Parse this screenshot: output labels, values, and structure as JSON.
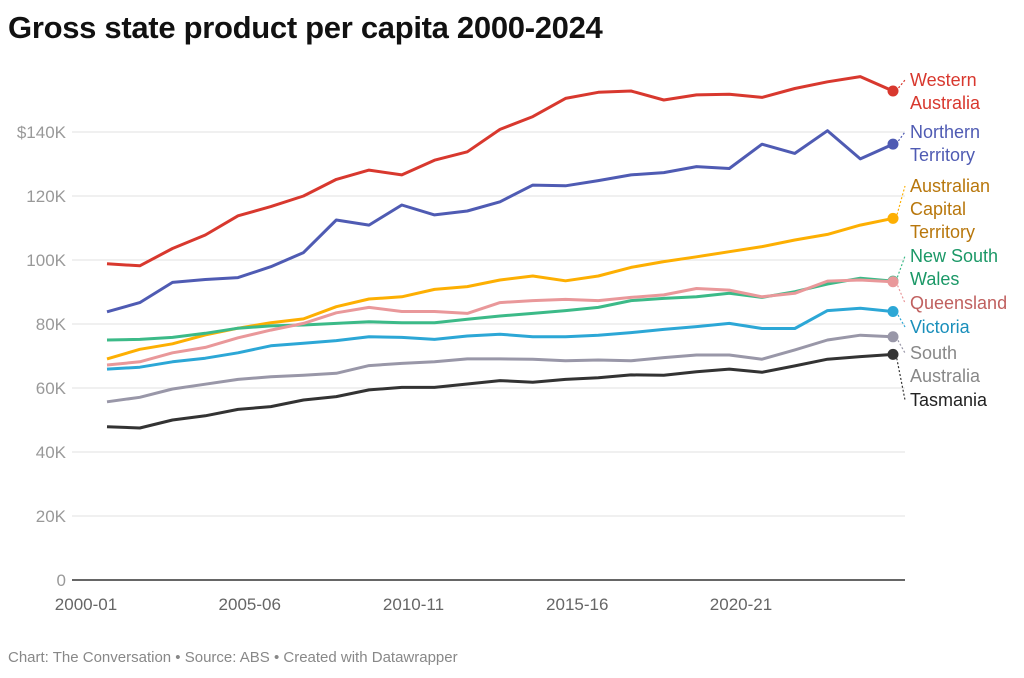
{
  "chart_data": {
    "type": "line",
    "title": "Gross state product per capita 2000-2024",
    "footer": "Chart: The Conversation • Source: ABS • Created with Datawrapper",
    "xlabel": "",
    "ylabel": "",
    "ylim": [
      0,
      160000
    ],
    "grid": true,
    "legend": "direct-labels-right",
    "x": [
      "2000-01",
      "2001-02",
      "2002-03",
      "2003-04",
      "2004-05",
      "2005-06",
      "2006-07",
      "2007-08",
      "2008-09",
      "2009-10",
      "2010-11",
      "2011-12",
      "2012-13",
      "2013-14",
      "2014-15",
      "2015-16",
      "2016-17",
      "2017-18",
      "2018-19",
      "2019-20",
      "2020-21",
      "2021-22",
      "2022-23",
      "2023-24",
      "2024-25"
    ],
    "x_tick_labels": [
      "2000-01",
      "2005-06",
      "2010-11",
      "2015-16",
      "2020-21"
    ],
    "y_ticks": [
      0,
      20000,
      40000,
      60000,
      80000,
      100000,
      120000,
      140000
    ],
    "y_tick_labels": [
      "0",
      "20K",
      "40K",
      "60K",
      "80K",
      "100K",
      "120K",
      "$140K"
    ],
    "series": [
      {
        "name": "Western Australia",
        "label_lines": [
          "Western",
          "Australia"
        ],
        "color": "#d8382e",
        "label_color": "#d8382e",
        "values": [
          98800,
          98200,
          103600,
          107800,
          113800,
          116700,
          120000,
          125200,
          128100,
          126600,
          131200,
          133800,
          140800,
          144800,
          150500,
          152400,
          152800,
          150000,
          151600,
          151800,
          150800,
          153600,
          155700,
          157300,
          152800
        ]
      },
      {
        "name": "Northern Territory",
        "label_lines": [
          "Northern",
          "Territory"
        ],
        "color": "#4f5bb3",
        "label_color": "#4f5bb3",
        "values": [
          83800,
          86700,
          93000,
          93900,
          94500,
          97900,
          102300,
          112500,
          110900,
          117200,
          114100,
          115300,
          118200,
          123400,
          123200,
          124800,
          126600,
          127300,
          129200,
          128600,
          136200,
          133300,
          140400,
          131600,
          136200
        ]
      },
      {
        "name": "Australian Capital Territory",
        "label_lines": [
          "Australian",
          "Capital",
          "Territory"
        ],
        "color": "#fdaf02",
        "label_color": "#b8770c",
        "values": [
          69100,
          72100,
          73800,
          76600,
          78700,
          80400,
          81600,
          85400,
          87800,
          88500,
          90800,
          91700,
          93750,
          95000,
          93500,
          95000,
          97700,
          99500,
          101000,
          102600,
          104200,
          106250,
          108000,
          110900,
          113000
        ]
      },
      {
        "name": "New South Wales",
        "label_lines": [
          "New South",
          "Wales"
        ],
        "color": "#3cba88",
        "label_color": "#1b9867",
        "values": [
          75000,
          75200,
          75800,
          77100,
          78700,
          79400,
          79700,
          80200,
          80700,
          80400,
          80400,
          81500,
          82500,
          83300,
          84200,
          85200,
          87300,
          88000,
          88500,
          89600,
          88300,
          90100,
          92500,
          94300,
          93400
        ]
      },
      {
        "name": "Queensland",
        "label_lines": [
          "Queensland"
        ],
        "color": "#e9989a",
        "label_color": "#c0605f",
        "values": [
          67200,
          68200,
          71000,
          72700,
          75700,
          78100,
          80200,
          83500,
          85200,
          83900,
          83900,
          83300,
          86700,
          87300,
          87700,
          87300,
          88300,
          89100,
          91100,
          90600,
          88500,
          89600,
          93400,
          93750,
          93200
        ]
      },
      {
        "name": "Victoria",
        "label_lines": [
          "Victoria"
        ],
        "color": "#2ca7d6",
        "label_color": "#1a8fbb",
        "values": [
          65900,
          66500,
          68200,
          69300,
          71000,
          73200,
          74000,
          74800,
          76000,
          75800,
          75200,
          76250,
          76800,
          76000,
          76000,
          76500,
          77300,
          78300,
          79200,
          80200,
          78600,
          78600,
          84200,
          84900,
          83900
        ]
      },
      {
        "name": "South Australia",
        "label_lines": [
          "South",
          "Australia"
        ],
        "color": "#9997a8",
        "label_color": "#888888",
        "values": [
          55700,
          57100,
          59700,
          61200,
          62700,
          63500,
          64000,
          64600,
          67000,
          67700,
          68200,
          69100,
          69100,
          69000,
          68500,
          68750,
          68500,
          69500,
          70300,
          70300,
          69000,
          71900,
          75000,
          76500,
          76000
        ]
      },
      {
        "name": "Tasmania",
        "label_lines": [
          "Tasmania"
        ],
        "color": "#333333",
        "label_color": "#222222",
        "values": [
          47900,
          47500,
          50000,
          51300,
          53300,
          54200,
          56250,
          57300,
          59400,
          60200,
          60200,
          61250,
          62300,
          61800,
          62700,
          63200,
          64100,
          64000,
          65100,
          65900,
          64900,
          66900,
          69000,
          69800,
          70500
        ]
      }
    ]
  }
}
